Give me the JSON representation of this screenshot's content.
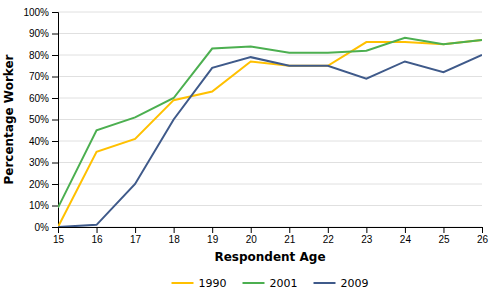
{
  "chart_data": {
    "type": "line",
    "x": [
      15,
      16,
      17,
      18,
      19,
      20,
      21,
      22,
      23,
      24,
      25,
      26
    ],
    "series": [
      {
        "name": "1990",
        "color": "#FFC000",
        "values": [
          0,
          35,
          41,
          59,
          63,
          77,
          75,
          75,
          86,
          86,
          85,
          87
        ]
      },
      {
        "name": "2001",
        "color": "#4CAF50",
        "values": [
          9,
          45,
          51,
          60,
          83,
          84,
          81,
          81,
          82,
          88,
          85,
          87
        ]
      },
      {
        "name": "2009",
        "color": "#3F5A8A",
        "values": [
          0,
          1,
          20,
          50,
          74,
          79,
          75,
          75,
          69,
          77,
          72,
          80
        ]
      }
    ],
    "xlabel": "Respondent Age",
    "ylabel": "Percentage Worker",
    "xlim": [
      15,
      26
    ],
    "xticks": [
      15,
      16,
      17,
      18,
      19,
      20,
      21,
      22,
      23,
      24,
      25,
      26
    ],
    "ylim": [
      0,
      100
    ],
    "yticks": [
      {
        "value": 0,
        "label": "0%"
      },
      {
        "value": 10,
        "label": "10%"
      },
      {
        "value": 20,
        "label": "20%"
      },
      {
        "value": 30,
        "label": "30%"
      },
      {
        "value": 40,
        "label": "40%"
      },
      {
        "value": 50,
        "label": "50%"
      },
      {
        "value": 60,
        "label": "60%"
      },
      {
        "value": 70,
        "label": "70%"
      },
      {
        "value": 80,
        "label": "80%"
      },
      {
        "value": 90,
        "label": "90%"
      },
      {
        "value": 100,
        "label": "100%"
      }
    ],
    "grid": true,
    "legend": "bottom"
  }
}
